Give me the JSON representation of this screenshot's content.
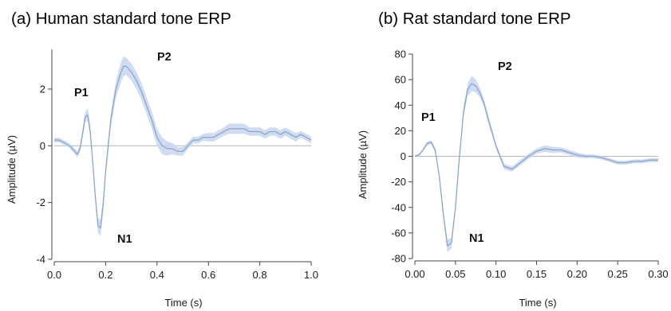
{
  "colors": {
    "band": "#c8d6ee",
    "line": "#8fa6c8",
    "axis": "#444444",
    "zero": "#b5b5b5"
  },
  "chart_data": [
    {
      "type": "line",
      "title": "(a) Human standard tone ERP",
      "xlabel": "Time (s)",
      "ylabel": "Amplitude (µV)",
      "xlim": [
        0.0,
        1.0
      ],
      "ylim": [
        -4,
        3.4
      ],
      "xticks": [
        "0.0",
        "0.2",
        "0.4",
        "0.6",
        "0.8",
        "1.0"
      ],
      "yticks": [
        "-4",
        "-2",
        "0",
        "2"
      ],
      "grid": false,
      "zero_line": true,
      "annotations": [
        "P1",
        "N1",
        "P2"
      ],
      "series": [
        {
          "x": [
            0.0,
            0.02,
            0.04,
            0.06,
            0.08,
            0.09,
            0.1,
            0.11,
            0.12,
            0.13,
            0.14,
            0.15,
            0.16,
            0.17,
            0.18,
            0.19,
            0.2,
            0.22,
            0.24,
            0.26,
            0.27,
            0.28,
            0.3,
            0.32,
            0.34,
            0.36,
            0.38,
            0.4,
            0.42,
            0.44,
            0.46,
            0.48,
            0.5,
            0.52,
            0.54,
            0.56,
            0.58,
            0.6,
            0.62,
            0.64,
            0.66,
            0.68,
            0.7,
            0.72,
            0.74,
            0.76,
            0.78,
            0.8,
            0.82,
            0.84,
            0.86,
            0.88,
            0.9,
            0.92,
            0.94,
            0.96,
            0.98,
            1.0
          ],
          "y": [
            0.2,
            0.2,
            0.1,
            0.0,
            -0.2,
            -0.3,
            -0.1,
            0.4,
            1.0,
            1.1,
            0.5,
            -0.6,
            -1.8,
            -2.8,
            -2.9,
            -2.1,
            -0.9,
            0.9,
            2.0,
            2.6,
            2.8,
            2.8,
            2.6,
            2.3,
            1.9,
            1.4,
            0.9,
            0.3,
            0.0,
            -0.1,
            -0.1,
            -0.2,
            -0.2,
            0.0,
            0.2,
            0.2,
            0.3,
            0.3,
            0.3,
            0.4,
            0.5,
            0.6,
            0.6,
            0.6,
            0.6,
            0.5,
            0.5,
            0.5,
            0.4,
            0.5,
            0.5,
            0.4,
            0.5,
            0.4,
            0.3,
            0.4,
            0.3,
            0.2
          ],
          "error": [
            0.08,
            0.08,
            0.08,
            0.08,
            0.1,
            0.1,
            0.12,
            0.15,
            0.18,
            0.2,
            0.2,
            0.2,
            0.2,
            0.25,
            0.3,
            0.25,
            0.2,
            0.25,
            0.3,
            0.35,
            0.35,
            0.3,
            0.3,
            0.3,
            0.3,
            0.3,
            0.3,
            0.3,
            0.3,
            0.25,
            0.2,
            0.15,
            0.15,
            0.12,
            0.12,
            0.12,
            0.12,
            0.15,
            0.15,
            0.15,
            0.15,
            0.18,
            0.18,
            0.18,
            0.18,
            0.15,
            0.15,
            0.15,
            0.15,
            0.15,
            0.15,
            0.15,
            0.15,
            0.15,
            0.15,
            0.12,
            0.12,
            0.12
          ]
        }
      ]
    },
    {
      "type": "line",
      "title": "(b) Rat standard tone ERP",
      "xlabel": "Time (s)",
      "ylabel": "Amplitude (µV)",
      "xlim": [
        0.0,
        0.3
      ],
      "ylim": [
        -80,
        80
      ],
      "xticks": [
        "0.00",
        "0.05",
        "0.10",
        "0.15",
        "0.20",
        "0.25",
        "0.30"
      ],
      "yticks": [
        "-80",
        "-60",
        "-40",
        "-20",
        "0",
        "20",
        "40",
        "60",
        "80"
      ],
      "grid": false,
      "zero_line": true,
      "annotations": [
        "P1",
        "N1",
        "P2"
      ],
      "series": [
        {
          "x": [
            0.0,
            0.005,
            0.01,
            0.015,
            0.02,
            0.025,
            0.03,
            0.035,
            0.04,
            0.045,
            0.05,
            0.055,
            0.06,
            0.065,
            0.07,
            0.075,
            0.08,
            0.085,
            0.09,
            0.1,
            0.11,
            0.12,
            0.13,
            0.14,
            0.15,
            0.16,
            0.17,
            0.18,
            0.19,
            0.2,
            0.21,
            0.22,
            0.23,
            0.24,
            0.25,
            0.26,
            0.27,
            0.28,
            0.29,
            0.3
          ],
          "y": [
            0,
            1,
            5,
            10,
            11,
            5,
            -15,
            -45,
            -70,
            -68,
            -40,
            0,
            35,
            52,
            57,
            55,
            50,
            42,
            30,
            8,
            -8,
            -10,
            -5,
            0,
            4,
            6,
            5,
            5,
            3,
            1,
            0,
            0,
            -1,
            -3,
            -5,
            -5,
            -4,
            -4,
            -3,
            -3
          ],
          "error": [
            1,
            1,
            1,
            1.5,
            1.5,
            2,
            2,
            3,
            5,
            4,
            3,
            3,
            4,
            5,
            6,
            5,
            4,
            3,
            3,
            2,
            2,
            2,
            2,
            2,
            2,
            2.5,
            2.5,
            2,
            2,
            2,
            1.5,
            1.5,
            1.5,
            1.5,
            1.5,
            1.5,
            1.5,
            1.5,
            1.5,
            1.5
          ]
        }
      ]
    }
  ]
}
